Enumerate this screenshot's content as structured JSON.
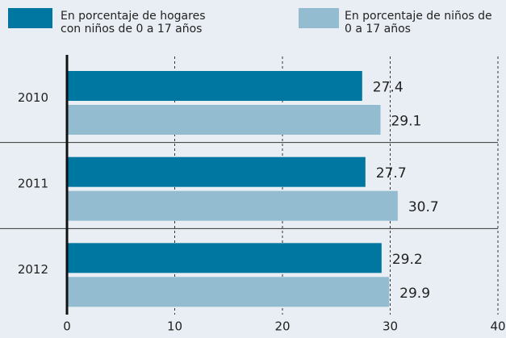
{
  "chart_data": {
    "type": "hbar",
    "categories": [
      "2010",
      "2011",
      "2012"
    ],
    "series": [
      {
        "name": "En porcentaje de hogares con niños de 0 a 17 años",
        "color": "#0077a0",
        "values": [
          27.4,
          27.7,
          29.2
        ]
      },
      {
        "name": "En porcentaje de niños de 0 a 17 años",
        "color": "#93bcd0",
        "values": [
          29.1,
          30.7,
          29.9
        ]
      }
    ],
    "xlim": [
      0,
      40
    ],
    "xticks": [
      0,
      10,
      20,
      30,
      40
    ],
    "grid": true,
    "legend": "top"
  }
}
